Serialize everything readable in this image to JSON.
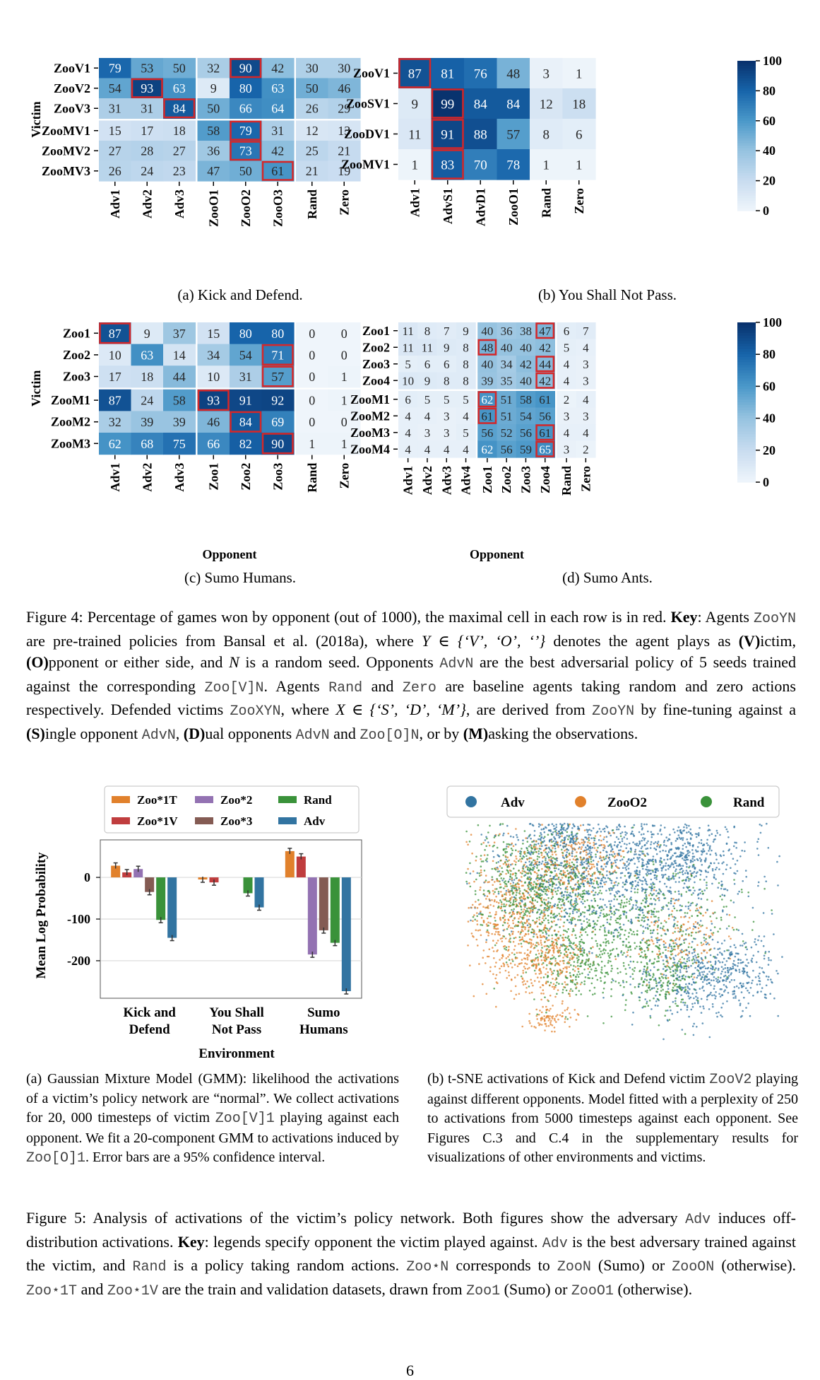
{
  "figure4": {
    "panels": [
      {
        "id": "a",
        "caption": "(a) Kick and Defend.",
        "ylabel": "Victim",
        "xlabel": "",
        "rows": [
          "ZooV1",
          "ZooV2",
          "ZooV3",
          "ZooMV1",
          "ZooMV2",
          "ZooMV3"
        ],
        "cols": [
          "Adv1",
          "Adv2",
          "Adv3",
          "ZooO1",
          "ZooO2",
          "ZooO3",
          "Rand",
          "Zero"
        ],
        "values": [
          [
            79,
            53,
            50,
            32,
            90,
            42,
            30,
            30
          ],
          [
            54,
            93,
            63,
            9,
            80,
            63,
            50,
            46
          ],
          [
            31,
            31,
            84,
            50,
            66,
            64,
            26,
            29
          ],
          [
            15,
            17,
            18,
            58,
            79,
            31,
            12,
            13
          ],
          [
            27,
            28,
            27,
            36,
            73,
            42,
            25,
            21
          ],
          [
            26,
            24,
            23,
            47,
            50,
            61,
            21,
            19
          ]
        ],
        "highlight": [
          [
            0,
            4
          ],
          [
            1,
            1
          ],
          [
            2,
            2
          ],
          [
            3,
            4
          ],
          [
            4,
            4
          ],
          [
            5,
            5
          ]
        ],
        "row_breaks": [
          3
        ],
        "col_breaks": [
          3,
          6
        ]
      },
      {
        "id": "b",
        "caption": "(b) You Shall Not Pass.",
        "ylabel": "",
        "xlabel": "",
        "rows": [
          "ZooV1",
          "ZooSV1",
          "ZooDV1",
          "ZooMV1"
        ],
        "cols": [
          "Adv1",
          "AdvS1",
          "AdvD1",
          "ZooO1",
          "Rand",
          "Zero"
        ],
        "values": [
          [
            87,
            81,
            76,
            48,
            3,
            1
          ],
          [
            9,
            99,
            84,
            84,
            12,
            18
          ],
          [
            11,
            91,
            88,
            57,
            8,
            6
          ],
          [
            1,
            83,
            70,
            78,
            1,
            1
          ]
        ],
        "highlight": [
          [
            0,
            0
          ],
          [
            1,
            1
          ],
          [
            2,
            1
          ],
          [
            3,
            1
          ]
        ],
        "row_breaks": [],
        "col_breaks": []
      },
      {
        "id": "c",
        "caption": "(c) Sumo Humans.",
        "ylabel": "Victim",
        "xlabel": "Opponent",
        "rows": [
          "Zoo1",
          "Zoo2",
          "Zoo3",
          "ZooM1",
          "ZooM2",
          "ZooM3"
        ],
        "cols": [
          "Adv1",
          "Adv2",
          "Adv3",
          "Zoo1",
          "Zoo2",
          "Zoo3",
          "Rand",
          "Zero"
        ],
        "values": [
          [
            87,
            9,
            37,
            15,
            80,
            80,
            0,
            0
          ],
          [
            10,
            63,
            14,
            34,
            54,
            71,
            0,
            0
          ],
          [
            17,
            18,
            44,
            10,
            31,
            57,
            0,
            1
          ],
          [
            87,
            24,
            58,
            93,
            91,
            92,
            0,
            1
          ],
          [
            32,
            39,
            39,
            46,
            84,
            69,
            0,
            0
          ],
          [
            62,
            68,
            75,
            66,
            82,
            90,
            1,
            1
          ]
        ],
        "highlight": [
          [
            0,
            0
          ],
          [
            1,
            5
          ],
          [
            2,
            5
          ],
          [
            3,
            3
          ],
          [
            4,
            4
          ],
          [
            5,
            5
          ]
        ],
        "row_breaks": [
          3
        ],
        "col_breaks": [
          3,
          6
        ]
      },
      {
        "id": "d",
        "caption": "(d) Sumo Ants.",
        "ylabel": "",
        "xlabel": "Opponent",
        "rows": [
          "Zoo1",
          "Zoo2",
          "Zoo3",
          "Zoo4",
          "ZooM1",
          "ZooM2",
          "ZooM3",
          "ZooM4"
        ],
        "cols": [
          "Adv1",
          "Adv2",
          "Adv3",
          "Adv4",
          "Zoo1",
          "Zoo2",
          "Zoo3",
          "Zoo4",
          "Rand",
          "Zero"
        ],
        "values": [
          [
            11,
            8,
            7,
            9,
            40,
            36,
            38,
            47,
            6,
            7
          ],
          [
            11,
            11,
            9,
            8,
            48,
            40,
            40,
            42,
            5,
            4
          ],
          [
            5,
            6,
            6,
            8,
            40,
            34,
            42,
            44,
            4,
            3
          ],
          [
            10,
            9,
            8,
            8,
            39,
            35,
            40,
            42,
            4,
            3
          ],
          [
            6,
            5,
            5,
            5,
            62,
            51,
            58,
            61,
            2,
            4
          ],
          [
            4,
            4,
            3,
            4,
            61,
            51,
            54,
            56,
            3,
            3
          ],
          [
            4,
            3,
            3,
            5,
            56,
            52,
            56,
            61,
            4,
            4
          ],
          [
            4,
            4,
            4,
            4,
            62,
            56,
            59,
            65,
            3,
            2
          ]
        ],
        "highlight": [
          [
            0,
            7
          ],
          [
            1,
            4
          ],
          [
            2,
            7
          ],
          [
            3,
            7
          ],
          [
            4,
            4
          ],
          [
            5,
            4
          ],
          [
            6,
            7
          ],
          [
            7,
            7
          ]
        ],
        "row_breaks": [
          4
        ],
        "col_breaks": [
          4,
          8
        ]
      }
    ],
    "colorbar_ticks": [
      "0",
      "20",
      "40",
      "60",
      "80",
      "100"
    ],
    "caption_parts": [
      {
        "t": "Figure 4: Percentage of games won by opponent (out of 1000), the maximal cell in each row is in red. "
      },
      {
        "t": "Key",
        "b": true
      },
      {
        "t": ": Agents "
      },
      {
        "t": "ZooYN",
        "m": true
      },
      {
        "t": " are pre-trained policies from Bansal et al. (2018a), where "
      },
      {
        "t": "Y ∈ {‘V’, ‘O’, ‘’}",
        "i": true
      },
      {
        "t": " denotes the agent plays as "
      },
      {
        "t": "(V)",
        "b": true
      },
      {
        "t": "ictim, "
      },
      {
        "t": "(O)",
        "b": true
      },
      {
        "t": "pponent or either side, and "
      },
      {
        "t": "N",
        "i": true
      },
      {
        "t": " is a random seed. Opponents "
      },
      {
        "t": "AdvN",
        "m": true
      },
      {
        "t": " are the best adversarial policy of 5 seeds trained against the corresponding "
      },
      {
        "t": "Zoo[V]N",
        "m": true
      },
      {
        "t": ". Agents "
      },
      {
        "t": "Rand",
        "m": true
      },
      {
        "t": " and "
      },
      {
        "t": "Zero",
        "m": true
      },
      {
        "t": " are baseline agents taking random and zero actions respectively. Defended victims "
      },
      {
        "t": "ZooXYN",
        "m": true
      },
      {
        "t": ", where "
      },
      {
        "t": "X ∈ {‘S’, ‘D’, ‘M’}",
        "i": true
      },
      {
        "t": ", are derived from "
      },
      {
        "t": "ZooYN",
        "m": true
      },
      {
        "t": " by fine-tuning against a "
      },
      {
        "t": "(S)",
        "b": true
      },
      {
        "t": "ingle opponent "
      },
      {
        "t": "AdvN",
        "m": true
      },
      {
        "t": ", "
      },
      {
        "t": "(D)",
        "b": true
      },
      {
        "t": "ual opponents "
      },
      {
        "t": "AdvN",
        "m": true
      },
      {
        "t": " and "
      },
      {
        "t": "Zoo[O]N",
        "m": true
      },
      {
        "t": ", or by "
      },
      {
        "t": "(M)",
        "b": true
      },
      {
        "t": "asking the observations."
      }
    ]
  },
  "figure5": {
    "gmm": {
      "chart_data": {
        "type": "bar",
        "categories": [
          "Kick and Defend",
          "You Shall Not Pass",
          "Sumo Humans"
        ],
        "category_lines": [
          [
            "Kick and",
            "Defend"
          ],
          [
            "You Shall",
            "Not Pass"
          ],
          [
            "Sumo",
            "Humans"
          ]
        ],
        "series": [
          {
            "name": "Zoo*1T",
            "color": "#e1812c",
            "values": [
              28,
              -5,
              63
            ]
          },
          {
            "name": "Zoo*1V",
            "color": "#c03d3e",
            "values": [
              12,
              -12,
              50
            ]
          },
          {
            "name": "Zoo*2",
            "color": "#9372b2",
            "values": [
              20,
              null,
              -185
            ]
          },
          {
            "name": "Zoo*3",
            "color": "#845b53",
            "values": [
              -35,
              null,
              -127
            ]
          },
          {
            "name": "Rand",
            "color": "#3a923a",
            "values": [
              -102,
              -38,
              -157
            ]
          },
          {
            "name": "Adv",
            "color": "#3274a1",
            "values": [
              -145,
              -72,
              -273
            ]
          }
        ],
        "legend_order": [
          "Zoo*1T",
          "Zoo*2",
          "Rand",
          "Zoo*1V",
          "Zoo*3",
          "Adv"
        ],
        "ylabel": "Mean Log Probability",
        "xlabel": "Environment",
        "yticks": [
          0,
          -100,
          -200
        ],
        "ylim": [
          -290,
          90
        ]
      },
      "caption_parts": [
        {
          "t": "(a) Gaussian Mixture Model (GMM): likelihood the activations of a victim’s policy network are “normal”. We collect activations for 20, 000 timesteps of victim "
        },
        {
          "t": "Zoo[V]1",
          "m": true
        },
        {
          "t": " playing against each opponent. We fit a 20-component GMM to activations induced by "
        },
        {
          "t": "Zoo[O]1",
          "m": true
        },
        {
          "t": ". Error bars are a 95% confidence interval."
        }
      ]
    },
    "tsne": {
      "legend": [
        {
          "label": "Adv",
          "color": "#3274a1"
        },
        {
          "label": "ZooO2",
          "color": "#e1812c"
        },
        {
          "label": "Rand",
          "color": "#3a923a"
        }
      ],
      "caption_parts": [
        {
          "t": "(b) t-SNE activations of Kick and Defend victim "
        },
        {
          "t": "ZooV2",
          "m": true
        },
        {
          "t": " playing against different opponents. Model fitted with a perplexity of 250 to activations from 5000 timesteps against each opponent. See Figures C.3 and C.4 in the supplementary results for visualizations of other environments and victims."
        }
      ]
    },
    "caption_parts": [
      {
        "t": "Figure 5: Analysis of activations of the victim’s policy network. Both figures show the adversary "
      },
      {
        "t": "Adv",
        "m": true
      },
      {
        "t": " induces off-distribution activations. "
      },
      {
        "t": "Key",
        "b": true
      },
      {
        "t": ": legends specify opponent the victim played against. "
      },
      {
        "t": "Adv",
        "m": true
      },
      {
        "t": " is the best adversary trained against the victim, and "
      },
      {
        "t": "Rand",
        "m": true
      },
      {
        "t": " is a policy taking random actions. "
      },
      {
        "t": "Zoo⋆N",
        "m": true
      },
      {
        "t": " corresponds to "
      },
      {
        "t": "ZooN",
        "m": true
      },
      {
        "t": " (Sumo) or "
      },
      {
        "t": "ZooON",
        "m": true
      },
      {
        "t": " (otherwise). "
      },
      {
        "t": "Zoo⋆1T",
        "m": true
      },
      {
        "t": " and "
      },
      {
        "t": "Zoo⋆1V",
        "m": true
      },
      {
        "t": " are the train and validation datasets, drawn from "
      },
      {
        "t": "Zoo1",
        "m": true
      },
      {
        "t": " (Sumo) or "
      },
      {
        "t": "ZooO1",
        "m": true
      },
      {
        "t": " (otherwise)."
      }
    ]
  },
  "page_number": "6"
}
